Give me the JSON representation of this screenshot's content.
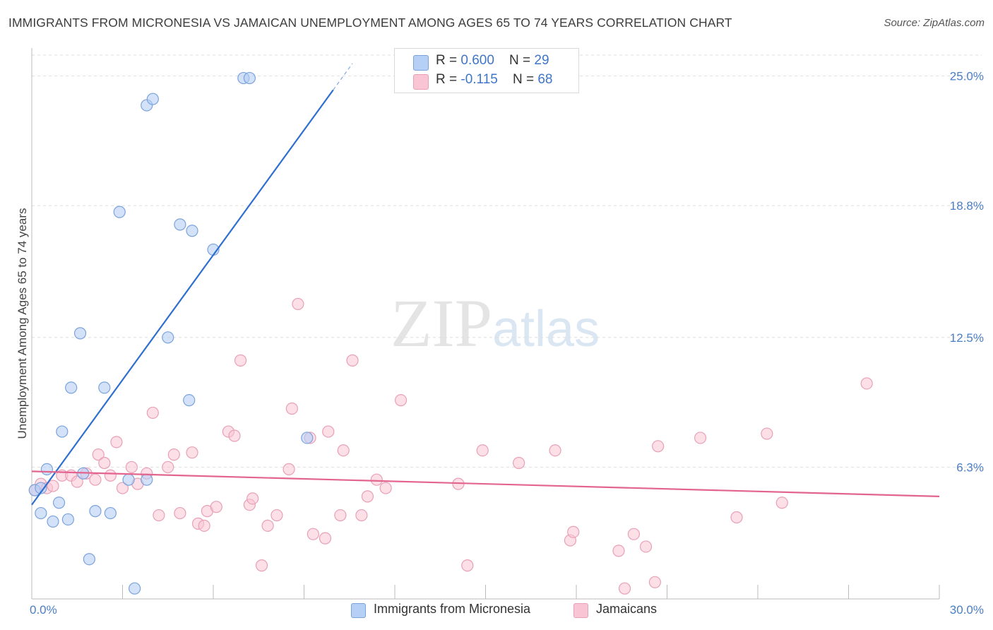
{
  "header": {
    "title": "IMMIGRANTS FROM MICRONESIA VS JAMAICAN UNEMPLOYMENT AMONG AGES 65 TO 74 YEARS CORRELATION CHART",
    "source": "Source: ZipAtlas.com"
  },
  "watermark": {
    "zip": "ZIP",
    "atlas": "atlas"
  },
  "legend": {
    "series1": {
      "r_label": "R = ",
      "r_value": "0.600",
      "n_label": "N = ",
      "n_value": "29"
    },
    "series2": {
      "r_label": "R = ",
      "r_value": "-0.115",
      "n_label": "N = ",
      "n_value": "68"
    }
  },
  "colors": {
    "blue_fill": "#b5cff5",
    "blue_stroke": "#7aa3dc",
    "blue_line": "#2f6fcf",
    "pink_fill": "#f9c4d3",
    "pink_stroke": "#e8a0b6",
    "pink_line": "#e2648f",
    "grid": "#dddddd",
    "axis_text": "#4a7fc8"
  },
  "chart_data": {
    "type": "scatter",
    "title": "IMMIGRANTS FROM MICRONESIA VS JAMAICAN UNEMPLOYMENT AMONG AGES 65 TO 74 YEARS CORRELATION CHART",
    "xlabel": "",
    "ylabel": "Unemployment Among Ages 65 to 74 years",
    "xlim": [
      0,
      30
    ],
    "ylim": [
      0,
      26
    ],
    "x_tick_labels": [
      "0.0%",
      "30.0%"
    ],
    "y_ticks": [
      6.3,
      12.5,
      18.8,
      25.0
    ],
    "y_tick_labels": [
      "6.3%",
      "12.5%",
      "18.8%",
      "25.0%"
    ],
    "grid": true,
    "legend_position": "top-center",
    "series": [
      {
        "name": "Immigrants from Micronesia",
        "color": "#b5cff5",
        "r": 0.6,
        "n": 29,
        "points": [
          [
            0.1,
            5.2
          ],
          [
            0.3,
            5.3
          ],
          [
            0.5,
            6.2
          ],
          [
            0.3,
            4.1
          ],
          [
            0.7,
            3.7
          ],
          [
            0.9,
            4.6
          ],
          [
            1.0,
            8.0
          ],
          [
            1.2,
            3.8
          ],
          [
            1.3,
            10.1
          ],
          [
            1.6,
            12.7
          ],
          [
            1.7,
            6.0
          ],
          [
            1.9,
            1.9
          ],
          [
            2.1,
            4.2
          ],
          [
            2.4,
            10.1
          ],
          [
            2.6,
            4.1
          ],
          [
            2.9,
            18.5
          ],
          [
            3.2,
            5.7
          ],
          [
            3.4,
            0.5
          ],
          [
            3.8,
            5.7
          ],
          [
            3.8,
            23.6
          ],
          [
            4.0,
            23.9
          ],
          [
            4.5,
            12.5
          ],
          [
            4.9,
            17.9
          ],
          [
            5.2,
            9.5
          ],
          [
            5.3,
            17.6
          ],
          [
            6.0,
            16.7
          ],
          [
            7.0,
            24.9
          ],
          [
            7.2,
            24.9
          ],
          [
            9.1,
            7.7
          ]
        ],
        "trend": {
          "x": [
            0.0,
            10.6
          ],
          "y": [
            4.5,
            25.6
          ]
        }
      },
      {
        "name": "Jamaicans",
        "color": "#f9c4d3",
        "r": -0.115,
        "n": 68,
        "points": [
          [
            0.1,
            5.2
          ],
          [
            0.3,
            5.5
          ],
          [
            0.5,
            5.3
          ],
          [
            0.7,
            5.4
          ],
          [
            1.0,
            5.9
          ],
          [
            1.3,
            5.9
          ],
          [
            1.5,
            5.6
          ],
          [
            1.8,
            6.0
          ],
          [
            2.1,
            5.7
          ],
          [
            2.2,
            6.9
          ],
          [
            2.4,
            6.5
          ],
          [
            2.6,
            5.9
          ],
          [
            2.8,
            7.5
          ],
          [
            3.0,
            5.3
          ],
          [
            3.3,
            6.3
          ],
          [
            3.5,
            5.5
          ],
          [
            3.8,
            6.0
          ],
          [
            4.0,
            8.9
          ],
          [
            4.2,
            4.0
          ],
          [
            4.5,
            6.3
          ],
          [
            4.7,
            6.9
          ],
          [
            4.9,
            4.1
          ],
          [
            5.3,
            7.0
          ],
          [
            5.5,
            3.6
          ],
          [
            5.7,
            3.5
          ],
          [
            5.8,
            4.2
          ],
          [
            6.1,
            4.4
          ],
          [
            6.5,
            8.0
          ],
          [
            6.7,
            7.8
          ],
          [
            6.9,
            11.4
          ],
          [
            7.2,
            4.5
          ],
          [
            7.3,
            4.8
          ],
          [
            7.6,
            1.6
          ],
          [
            7.8,
            3.5
          ],
          [
            8.1,
            4.0
          ],
          [
            8.5,
            6.2
          ],
          [
            8.6,
            9.1
          ],
          [
            8.8,
            14.1
          ],
          [
            9.2,
            7.7
          ],
          [
            9.3,
            3.1
          ],
          [
            9.7,
            2.9
          ],
          [
            9.8,
            8.0
          ],
          [
            10.2,
            4.0
          ],
          [
            10.3,
            7.1
          ],
          [
            10.6,
            11.4
          ],
          [
            10.9,
            4.0
          ],
          [
            11.1,
            4.9
          ],
          [
            11.4,
            5.7
          ],
          [
            11.7,
            5.3
          ],
          [
            12.2,
            9.5
          ],
          [
            14.1,
            5.5
          ],
          [
            14.4,
            1.6
          ],
          [
            14.9,
            7.1
          ],
          [
            16.1,
            6.5
          ],
          [
            17.3,
            7.1
          ],
          [
            17.8,
            2.8
          ],
          [
            17.9,
            3.2
          ],
          [
            19.4,
            2.3
          ],
          [
            19.6,
            0.5
          ],
          [
            19.9,
            3.1
          ],
          [
            20.3,
            2.5
          ],
          [
            20.6,
            0.8
          ],
          [
            20.7,
            7.3
          ],
          [
            22.1,
            7.7
          ],
          [
            23.3,
            3.9
          ],
          [
            24.3,
            7.9
          ],
          [
            24.8,
            4.6
          ],
          [
            27.6,
            10.3
          ]
        ],
        "trend": {
          "x": [
            0.0,
            30.0
          ],
          "y": [
            6.1,
            4.9
          ]
        }
      }
    ]
  },
  "bottom_legend": {
    "items": [
      {
        "label": "Immigrants from Micronesia"
      },
      {
        "label": "Jamaicans"
      }
    ]
  }
}
